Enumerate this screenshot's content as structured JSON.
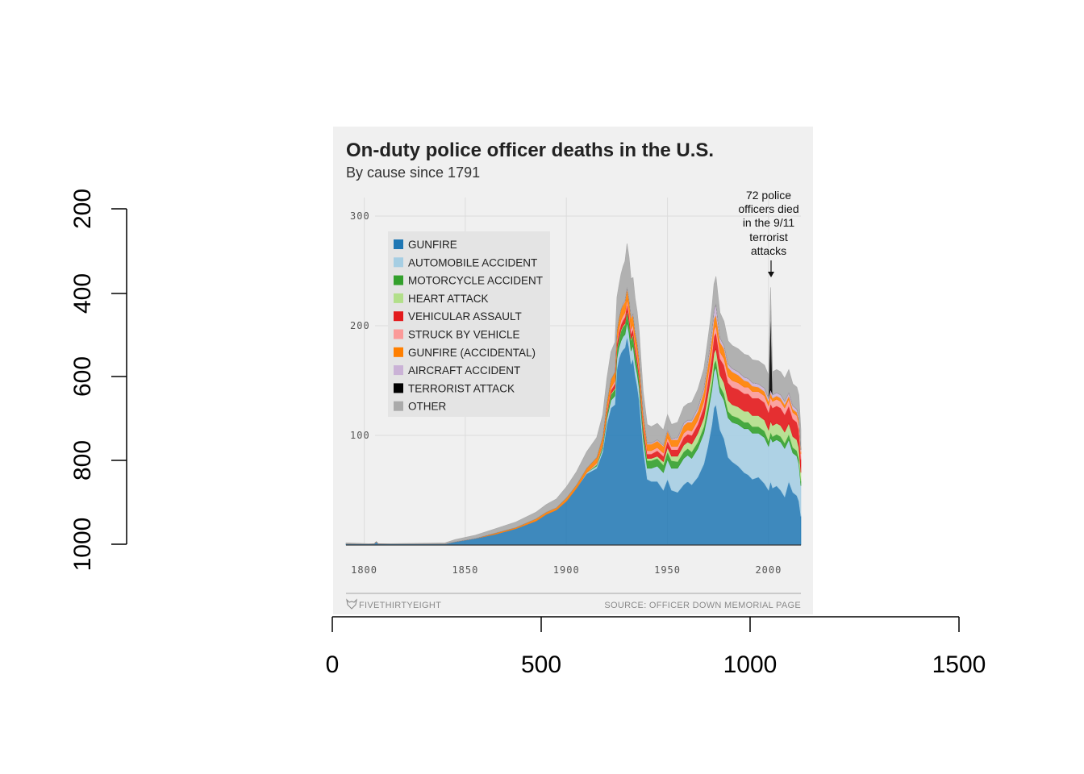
{
  "outer_axes": {
    "x_ticks": [
      "0",
      "500",
      "1000",
      "1500"
    ],
    "y_ticks": [
      "200",
      "400",
      "600",
      "800",
      "1000"
    ]
  },
  "panel": {
    "title": "On-duty police officer deaths in the U.S.",
    "subtitle": "By cause since 1791",
    "annotation": [
      "72 police",
      "officers died",
      "in the 9/11",
      "terrorist",
      "attacks"
    ],
    "footer_brand": "FIVETHIRTYEIGHT",
    "footer_source": "SOURCE: OFFICER DOWN MEMORIAL PAGE"
  },
  "chart_data": {
    "type": "area",
    "stacked": true,
    "title": "On-duty police officer deaths in the U.S.",
    "subtitle": "By cause since 1791",
    "xlim": [
      1791,
      2016
    ],
    "ylim": [
      0,
      320
    ],
    "x_ticks": [
      1800,
      1850,
      1900,
      1950,
      2000
    ],
    "y_ticks": [
      100,
      200,
      300
    ],
    "grid": true,
    "legend_position": "top-left",
    "x": [
      1791,
      1805,
      1806,
      1807,
      1840,
      1845,
      1855,
      1865,
      1875,
      1885,
      1890,
      1895,
      1900,
      1905,
      1910,
      1915,
      1918,
      1920,
      1922,
      1924,
      1925,
      1926,
      1927,
      1928,
      1929,
      1930,
      1931,
      1932,
      1933,
      1934,
      1935,
      1936,
      1937,
      1938,
      1940,
      1942,
      1945,
      1948,
      1950,
      1952,
      1955,
      1958,
      1960,
      1962,
      1965,
      1968,
      1970,
      1971,
      1972,
      1973,
      1974,
      1975,
      1976,
      1978,
      1980,
      1982,
      1985,
      1988,
      1990,
      1992,
      1995,
      1998,
      2000,
      2001,
      2002,
      2004,
      2006,
      2008,
      2010,
      2012,
      2014,
      2015,
      2016
    ],
    "series": [
      {
        "name": "GUNFIRE",
        "color": "#1f77b4",
        "values": [
          1,
          1,
          3,
          1,
          1,
          3,
          6,
          10,
          15,
          22,
          28,
          32,
          40,
          52,
          65,
          70,
          85,
          110,
          125,
          128,
          160,
          170,
          175,
          178,
          180,
          190,
          180,
          165,
          170,
          155,
          145,
          132,
          110,
          88,
          60,
          58,
          58,
          50,
          60,
          50,
          48,
          55,
          58,
          55,
          62,
          74,
          90,
          100,
          110,
          125,
          128,
          116,
          105,
          97,
          80,
          76,
          72,
          66,
          64,
          60,
          62,
          56,
          50,
          58,
          52,
          54,
          50,
          44,
          58,
          48,
          45,
          40,
          26
        ]
      },
      {
        "name": "AUTOMOBILE ACCIDENT",
        "color": "#a6cee3",
        "values": [
          0,
          0,
          0,
          0,
          0,
          0,
          0,
          0,
          0,
          0,
          0,
          0,
          0,
          0,
          1,
          2,
          3,
          5,
          7,
          8,
          10,
          10,
          11,
          12,
          12,
          13,
          13,
          12,
          12,
          11,
          11,
          11,
          10,
          9,
          10,
          12,
          14,
          16,
          18,
          20,
          22,
          24,
          24,
          24,
          26,
          28,
          30,
          31,
          32,
          33,
          34,
          34,
          34,
          35,
          36,
          36,
          38,
          40,
          42,
          42,
          40,
          42,
          40,
          40,
          42,
          42,
          44,
          44,
          38,
          36,
          36,
          34,
          28
        ]
      },
      {
        "name": "MOTORCYCLE ACCIDENT",
        "color": "#33a02c",
        "values": [
          0,
          0,
          0,
          0,
          0,
          0,
          0,
          0,
          0,
          0,
          0,
          0,
          0,
          0,
          0,
          1,
          2,
          3,
          5,
          6,
          8,
          8,
          9,
          9,
          9,
          10,
          10,
          10,
          9,
          9,
          9,
          8,
          8,
          7,
          7,
          7,
          7,
          7,
          7,
          7,
          6,
          6,
          6,
          6,
          6,
          6,
          7,
          7,
          7,
          7,
          7,
          7,
          6,
          6,
          6,
          6,
          6,
          6,
          6,
          6,
          6,
          6,
          5,
          5,
          5,
          5,
          5,
          5,
          5,
          5,
          5,
          5,
          4
        ]
      },
      {
        "name": "HEART ATTACK",
        "color": "#b2df8a",
        "values": [
          0,
          0,
          0,
          0,
          0,
          0,
          0,
          0,
          0,
          0,
          0,
          0,
          0,
          0,
          0,
          1,
          1,
          1,
          1,
          1,
          1,
          1,
          1,
          1,
          1,
          1,
          1,
          1,
          1,
          1,
          1,
          1,
          1,
          1,
          2,
          2,
          2,
          3,
          4,
          4,
          5,
          6,
          6,
          7,
          8,
          8,
          10,
          10,
          10,
          10,
          10,
          10,
          10,
          10,
          10,
          10,
          10,
          10,
          10,
          10,
          10,
          10,
          10,
          10,
          10,
          10,
          10,
          10,
          10,
          10,
          10,
          10,
          8
        ]
      },
      {
        "name": "VEHICULAR ASSAULT",
        "color": "#e31a1c",
        "values": [
          0,
          0,
          0,
          0,
          0,
          0,
          0,
          0,
          0,
          0,
          0,
          0,
          0,
          0,
          0,
          0,
          1,
          2,
          3,
          4,
          5,
          5,
          5,
          5,
          6,
          6,
          6,
          5,
          5,
          5,
          5,
          5,
          4,
          4,
          4,
          4,
          5,
          5,
          6,
          6,
          6,
          7,
          7,
          8,
          8,
          10,
          12,
          13,
          14,
          15,
          15,
          15,
          15,
          16,
          16,
          16,
          16,
          16,
          16,
          16,
          16,
          16,
          16,
          16,
          16,
          16,
          16,
          16,
          16,
          16,
          16,
          16,
          12
        ]
      },
      {
        "name": "STRUCK BY VEHICLE",
        "color": "#fb9a99",
        "values": [
          0,
          0,
          0,
          0,
          0,
          0,
          0,
          0,
          0,
          0,
          0,
          0,
          0,
          0,
          0,
          1,
          1,
          2,
          2,
          3,
          3,
          3,
          4,
          4,
          4,
          4,
          4,
          4,
          4,
          4,
          4,
          4,
          3,
          3,
          3,
          3,
          3,
          3,
          3,
          3,
          3,
          4,
          4,
          4,
          4,
          5,
          5,
          5,
          6,
          6,
          6,
          6,
          6,
          6,
          6,
          6,
          6,
          6,
          6,
          6,
          6,
          6,
          6,
          6,
          6,
          6,
          6,
          6,
          6,
          6,
          6,
          6,
          5
        ]
      },
      {
        "name": "GUNFIRE (ACCIDENTAL)",
        "color": "#ff7f00",
        "values": [
          0,
          0,
          0,
          0,
          0,
          0,
          0,
          1,
          1,
          2,
          2,
          2,
          3,
          3,
          4,
          5,
          6,
          7,
          8,
          8,
          9,
          10,
          10,
          10,
          10,
          10,
          10,
          10,
          9,
          9,
          9,
          8,
          8,
          7,
          6,
          6,
          6,
          6,
          6,
          6,
          6,
          7,
          7,
          8,
          8,
          9,
          10,
          10,
          10,
          10,
          10,
          10,
          9,
          9,
          8,
          8,
          7,
          6,
          5,
          5,
          4,
          4,
          4,
          4,
          3,
          3,
          3,
          3,
          3,
          3,
          3,
          3,
          2
        ]
      },
      {
        "name": "AIRCRAFT ACCIDENT",
        "color": "#cab2d6",
        "values": [
          0,
          0,
          0,
          0,
          0,
          0,
          0,
          0,
          0,
          0,
          0,
          0,
          0,
          0,
          0,
          0,
          0,
          0,
          0,
          0,
          0,
          0,
          0,
          1,
          1,
          1,
          1,
          1,
          1,
          1,
          1,
          1,
          1,
          1,
          1,
          1,
          1,
          1,
          1,
          1,
          2,
          2,
          2,
          2,
          3,
          3,
          4,
          5,
          6,
          8,
          10,
          6,
          4,
          3,
          3,
          3,
          3,
          3,
          3,
          3,
          3,
          3,
          3,
          3,
          3,
          3,
          3,
          3,
          3,
          3,
          3,
          3,
          2
        ]
      },
      {
        "name": "TERRORIST ATTACK",
        "color": "#000000",
        "values": [
          0,
          0,
          0,
          0,
          0,
          0,
          0,
          0,
          0,
          0,
          0,
          0,
          0,
          0,
          0,
          0,
          0,
          0,
          0,
          0,
          0,
          0,
          0,
          0,
          0,
          0,
          0,
          0,
          0,
          0,
          0,
          0,
          0,
          0,
          0,
          0,
          0,
          0,
          0,
          0,
          0,
          0,
          0,
          0,
          0,
          0,
          0,
          0,
          0,
          0,
          0,
          0,
          0,
          0,
          0,
          0,
          0,
          0,
          0,
          0,
          0,
          0,
          0,
          72,
          0,
          0,
          0,
          0,
          0,
          0,
          0,
          0,
          0
        ]
      },
      {
        "name": "OTHER",
        "color": "#aaaaaa",
        "values": [
          1,
          0,
          0,
          0,
          1,
          2,
          3,
          4,
          5,
          6,
          7,
          8,
          10,
          12,
          15,
          18,
          20,
          22,
          25,
          27,
          30,
          30,
          32,
          34,
          36,
          40,
          38,
          35,
          33,
          30,
          28,
          25,
          22,
          20,
          17,
          15,
          15,
          14,
          14,
          13,
          14,
          15,
          15,
          16,
          17,
          18,
          20,
          21,
          22,
          24,
          25,
          24,
          23,
          22,
          21,
          21,
          21,
          21,
          21,
          21,
          21,
          21,
          21,
          21,
          21,
          21,
          21,
          21,
          21,
          20,
          20,
          20,
          18
        ]
      }
    ]
  }
}
